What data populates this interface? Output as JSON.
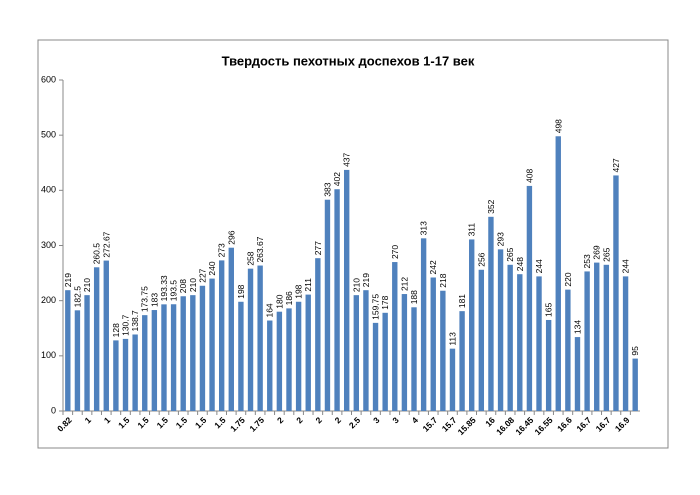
{
  "chart_data": {
    "type": "bar",
    "title": "Твердость пехотных доспехов 1-17 век",
    "categories": [
      "0.82",
      null,
      "1",
      null,
      "1",
      null,
      "1.5",
      null,
      "1.5",
      null,
      "1.5",
      null,
      "1.5",
      null,
      "1.5",
      null,
      "1.5",
      null,
      "1.75",
      null,
      "1.75",
      null,
      "2",
      null,
      "2",
      null,
      "2",
      null,
      "2",
      null,
      "2.5",
      null,
      "3",
      null,
      "3",
      null,
      "4",
      null,
      "15.7",
      null,
      "15.7",
      null,
      "15.85",
      null,
      "16",
      null,
      "16.08",
      null,
      "16.45",
      null,
      "16.55",
      null,
      "16.6",
      null,
      "16.7",
      null,
      "16.7",
      null,
      "16.9",
      null
    ],
    "values": [
      219,
      182.5,
      210,
      260.5,
      272.67,
      128,
      130.7,
      138.7,
      173.75,
      183,
      193.33,
      193.5,
      208,
      210,
      227,
      240,
      273,
      296,
      198,
      258,
      263.67,
      164,
      180,
      186,
      198,
      211,
      277,
      383,
      402,
      437,
      210,
      219,
      159.75,
      178,
      270,
      212,
      188,
      313,
      242,
      218,
      113,
      181,
      311,
      256,
      352,
      293,
      265,
      248,
      408,
      244,
      165,
      498,
      220,
      134,
      253,
      269,
      265,
      427,
      244,
      95
    ],
    "color": "#4f81bd",
    "ylim": [
      0,
      600
    ],
    "yticks": [
      0,
      100,
      200,
      300,
      400,
      500,
      600
    ],
    "grid": false
  }
}
